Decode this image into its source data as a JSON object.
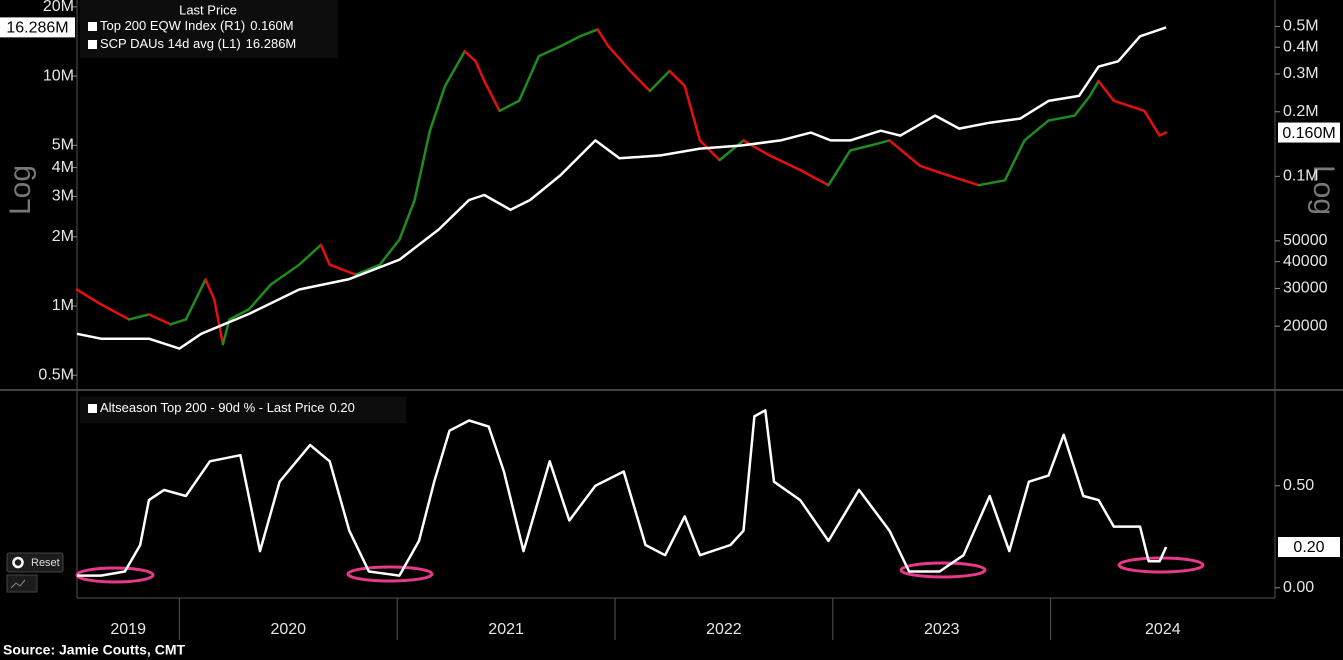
{
  "chart_data": [
    {
      "type": "line",
      "legend_title": "Last Price",
      "ylabel": "Log",
      "y2label": "Log",
      "yscale": "log",
      "y2scale": "log",
      "xlim": [
        2019.53,
        2025.03
      ],
      "ylim": [
        440000,
        21000000
      ],
      "yticks": [
        {
          "value": 500000,
          "label": "0.5M"
        },
        {
          "value": 1000000,
          "label": "1M"
        },
        {
          "value": 2000000,
          "label": "2M"
        },
        {
          "value": 3000000,
          "label": "3M"
        },
        {
          "value": 4000000,
          "label": "4M"
        },
        {
          "value": 5000000,
          "label": "5M"
        },
        {
          "value": 10000000,
          "label": "10M"
        },
        {
          "value": 20000000,
          "label": "20M"
        }
      ],
      "y2lim": [
        10300,
        650000
      ],
      "y2ticks": [
        20000,
        30000,
        40000,
        50000,
        {
          "value": 100000,
          "label": "0.1M"
        },
        {
          "value": 200000,
          "label": "0.2M"
        },
        {
          "value": 300000,
          "label": "0.3M"
        },
        {
          "value": 400000,
          "label": "0.4M"
        },
        {
          "value": 500000,
          "label": "0.5M"
        }
      ],
      "series": [
        {
          "name": "Top 200 EQW Index (R1)",
          "axis": "y2",
          "last_price_label": "0.160M",
          "x": [
            2019.53,
            2019.64,
            2019.77,
            2019.86,
            2019.96,
            2020.03,
            2020.12,
            2020.16,
            2020.2,
            2020.23,
            2020.32,
            2020.42,
            2020.55,
            2020.65,
            2020.69,
            2020.81,
            2020.92,
            2021.01,
            2021.08,
            2021.15,
            2021.22,
            2021.31,
            2021.36,
            2021.4,
            2021.47,
            2021.56,
            2021.65,
            2021.75,
            2021.84,
            2021.92,
            2021.97,
            2022.07,
            2022.16,
            2022.25,
            2022.32,
            2022.39,
            2022.48,
            2022.59,
            2022.71,
            2022.85,
            2022.98,
            2023.08,
            2023.17,
            2023.26,
            2023.4,
            2023.53,
            2023.67,
            2023.79,
            2023.88,
            2023.99,
            2024.11,
            2024.18,
            2024.22,
            2024.29,
            2024.43,
            2024.5,
            2024.53
          ],
          "values": [
            29600,
            25300,
            21500,
            22700,
            20400,
            21500,
            33000,
            26700,
            16500,
            21500,
            24000,
            31300,
            38700,
            47900,
            38700,
            34800,
            38700,
            50600,
            77400,
            163000,
            264000,
            383000,
            344000,
            278000,
            202000,
            225000,
            363000,
            404000,
            450000,
            484000,
            404000,
            310000,
            250000,
            310000,
            264000,
            147000,
            119000,
            147000,
            125000,
            107000,
            90900,
            132000,
            139000,
            147000,
            112000,
            101000,
            90900,
            95800,
            147000,
            182000,
            192000,
            237000,
            278000,
            225000,
            202000,
            155000,
            160000
          ],
          "colors": [
            "#e41010",
            "#e41010",
            "#e41010",
            "#1e8c1e",
            "#e41010",
            "#1e8c1e",
            "#1e8c1e",
            "#e41010",
            "#e41010",
            "#1e8c1e",
            "#1e8c1e",
            "#1e8c1e",
            "#1e8c1e",
            "#1e8c1e",
            "#e41010",
            "#e41010",
            "#1e8c1e",
            "#1e8c1e",
            "#1e8c1e",
            "#1e8c1e",
            "#1e8c1e",
            "#1e8c1e",
            "#e41010",
            "#e41010",
            "#e41010",
            "#1e8c1e",
            "#1e8c1e",
            "#1e8c1e",
            "#1e8c1e",
            "#1e8c1e",
            "#e41010",
            "#e41010",
            "#e41010",
            "#1e8c1e",
            "#e41010",
            "#e41010",
            "#e41010",
            "#1e8c1e",
            "#e41010",
            "#e41010",
            "#e41010",
            "#1e8c1e",
            "#1e8c1e",
            "#1e8c1e",
            "#e41010",
            "#e41010",
            "#e41010",
            "#1e8c1e",
            "#1e8c1e",
            "#1e8c1e",
            "#1e8c1e",
            "#1e8c1e",
            "#1e8c1e",
            "#e41010",
            "#e41010",
            "#e41010",
            "#e41010"
          ]
        },
        {
          "name": "SCP DAUs 14d avg  (L1)",
          "color": "#ffffff",
          "last_price_label": "16.286M",
          "x": [
            2019.53,
            2019.64,
            2019.86,
            2020.0,
            2020.1,
            2020.32,
            2020.55,
            2020.78,
            2021.01,
            2021.19,
            2021.33,
            2021.4,
            2021.52,
            2021.61,
            2021.75,
            2021.91,
            2022.02,
            2022.21,
            2022.39,
            2022.58,
            2022.76,
            2022.9,
            2022.99,
            2023.08,
            2023.22,
            2023.31,
            2023.47,
            2023.58,
            2023.72,
            2023.86,
            2023.99,
            2024.13,
            2024.22,
            2024.31,
            2024.41,
            2024.53
          ],
          "values": [
            757000,
            721000,
            721000,
            653000,
            757000,
            924000,
            1180000,
            1310000,
            1590000,
            2150000,
            2890000,
            3040000,
            2620000,
            2890000,
            3710000,
            5250000,
            4390000,
            4520000,
            4840000,
            4990000,
            5250000,
            5680000,
            5250000,
            5250000,
            5790000,
            5510000,
            6730000,
            5910000,
            6270000,
            6530000,
            7800000,
            8200000,
            11000000,
            11600000,
            14900000,
            16286000
          ]
        }
      ]
    },
    {
      "type": "line",
      "y_axis_side": "right",
      "xlim": [
        2019.53,
        2025.03
      ],
      "xticks": [
        2019,
        2020,
        2021,
        2022,
        2023,
        2024
      ],
      "ylim": [
        -0.05,
        0.95
      ],
      "yticks": [
        {
          "value": 0,
          "label": "0.00"
        },
        {
          "value": 0.5,
          "label": "0.50"
        }
      ],
      "series": [
        {
          "name": "Altseason Top 200 - 90d % - Last Price",
          "color": "#ffffff",
          "last_price_label": "0.20",
          "x": [
            2019.53,
            2019.64,
            2019.75,
            2019.82,
            2019.86,
            2019.93,
            2020.03,
            2020.14,
            2020.28,
            2020.37,
            2020.46,
            2020.6,
            2020.69,
            2020.78,
            2020.87,
            2021.01,
            2021.1,
            2021.17,
            2021.24,
            2021.33,
            2021.42,
            2021.49,
            2021.58,
            2021.7,
            2021.79,
            2021.91,
            2022.04,
            2022.14,
            2022.23,
            2022.32,
            2022.39,
            2022.53,
            2022.59,
            2022.64,
            2022.69,
            2022.73,
            2022.85,
            2022.98,
            2023.12,
            2023.26,
            2023.35,
            2023.49,
            2023.6,
            2023.72,
            2023.81,
            2023.9,
            2023.99,
            2024.06,
            2024.15,
            2024.22,
            2024.29,
            2024.41,
            2024.45,
            2024.5,
            2024.53
          ],
          "values": [
            0.06,
            0.06,
            0.08,
            0.21,
            0.43,
            0.48,
            0.45,
            0.62,
            0.65,
            0.18,
            0.52,
            0.7,
            0.62,
            0.28,
            0.08,
            0.06,
            0.23,
            0.52,
            0.77,
            0.82,
            0.79,
            0.57,
            0.18,
            0.62,
            0.33,
            0.5,
            0.57,
            0.21,
            0.16,
            0.35,
            0.16,
            0.21,
            0.28,
            0.84,
            0.87,
            0.52,
            0.43,
            0.23,
            0.48,
            0.28,
            0.08,
            0.08,
            0.16,
            0.45,
            0.18,
            0.52,
            0.55,
            0.75,
            0.45,
            0.43,
            0.3,
            0.3,
            0.13,
            0.13,
            0.2
          ]
        }
      ]
    }
  ],
  "controls": {
    "reset": "Reset"
  },
  "source": "Source: Jamie Coutts, CMT"
}
